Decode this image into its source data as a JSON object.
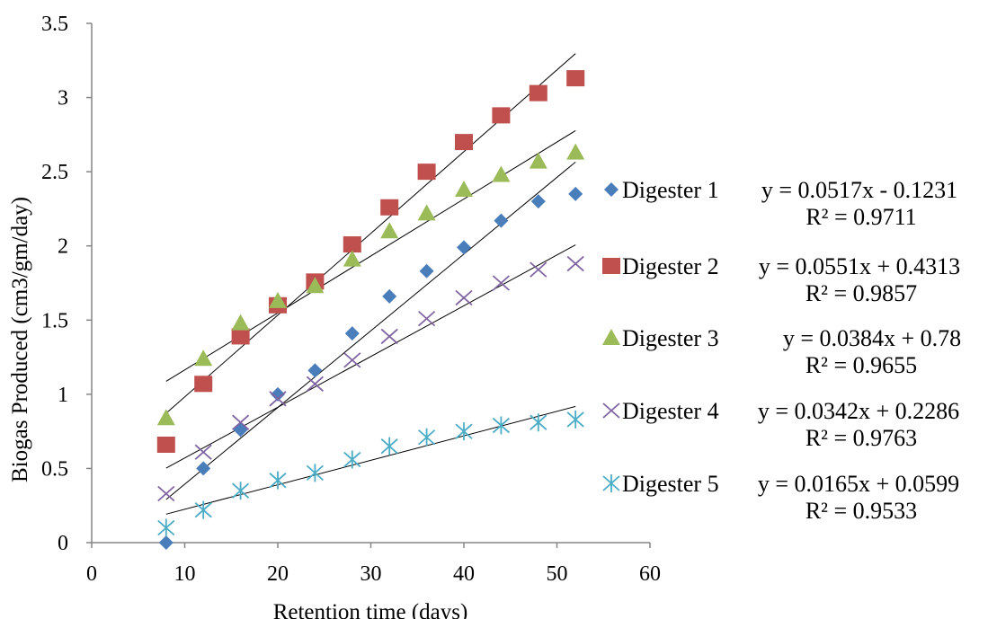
{
  "chart_data": {
    "type": "scatter",
    "title": "",
    "xlabel": "Retention time  (days)",
    "ylabel": "Biogas Produced (cm3/gm/day)",
    "xlim": [
      0,
      60
    ],
    "ylim": [
      0,
      3.5
    ],
    "xticks": [
      "0",
      "10",
      "20",
      "30",
      "40",
      "50",
      "60"
    ],
    "yticks": [
      "0",
      "0.5",
      "1",
      "1.5",
      "2",
      "2.5",
      "3",
      "3.5"
    ],
    "grid": false,
    "legend_position": "right",
    "x": [
      8,
      12,
      16,
      20,
      24,
      28,
      32,
      36,
      40,
      44,
      48,
      52
    ],
    "series": [
      {
        "name": "Digester 1",
        "marker": "diamond",
        "color": "#4a7ebb",
        "values": [
          0.0,
          0.5,
          0.76,
          1.0,
          1.16,
          1.41,
          1.66,
          1.83,
          1.99,
          2.17,
          2.3,
          2.35
        ],
        "trend": {
          "slope": 0.0517,
          "intercept": -0.1231
        },
        "equation": "y = 0.0517x  - 0.1231",
        "r2": "R² = 0.9711"
      },
      {
        "name": "Digester 2",
        "marker": "square",
        "color": "#c0504d",
        "values": [
          0.66,
          1.07,
          1.39,
          1.6,
          1.76,
          2.01,
          2.26,
          2.5,
          2.7,
          2.88,
          3.03,
          3.13
        ],
        "trend": {
          "slope": 0.0551,
          "intercept": 0.4313
        },
        "equation": "y = 0.0551x  + 0.4313",
        "r2": "R² = 0.9857"
      },
      {
        "name": "Digester 3",
        "marker": "triangle",
        "color": "#9bbb59",
        "values": [
          0.84,
          1.24,
          1.48,
          1.63,
          1.73,
          1.91,
          2.1,
          2.22,
          2.38,
          2.48,
          2.57,
          2.63
        ],
        "trend": {
          "slope": 0.0384,
          "intercept": 0.78
        },
        "equation": "y = 0.0384x  + 0.78",
        "r2": "R² = 0.9655"
      },
      {
        "name": "Digester 4",
        "marker": "x",
        "color": "#8064a2",
        "values": [
          0.33,
          0.61,
          0.81,
          0.97,
          1.07,
          1.23,
          1.39,
          1.51,
          1.65,
          1.75,
          1.84,
          1.88
        ],
        "trend": {
          "slope": 0.0342,
          "intercept": 0.2286
        },
        "equation": "y = 0.0342x  + 0.2286",
        "r2": "R² = 0.9763"
      },
      {
        "name": "Digester 5",
        "marker": "star",
        "color": "#4bacc6",
        "values": [
          0.1,
          0.22,
          0.35,
          0.42,
          0.47,
          0.56,
          0.65,
          0.71,
          0.75,
          0.79,
          0.81,
          0.83
        ],
        "trend": {
          "slope": 0.0165,
          "intercept": 0.0599
        },
        "equation": "y = 0.0165x  + 0.0599",
        "r2": "R² = 0.9533"
      }
    ]
  }
}
